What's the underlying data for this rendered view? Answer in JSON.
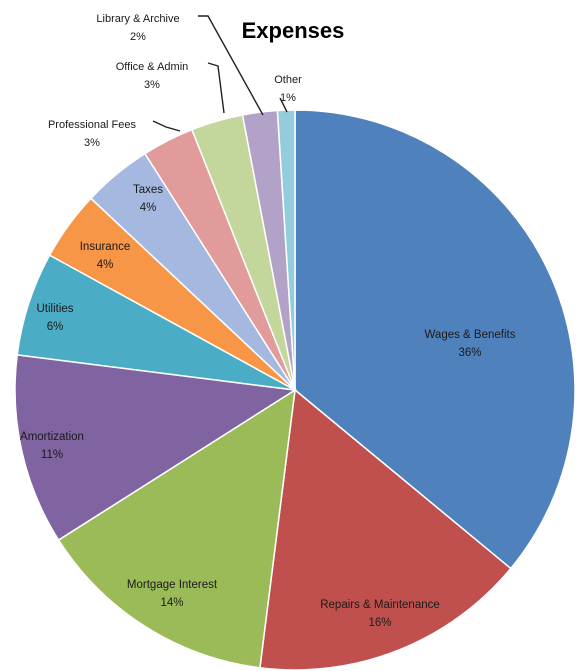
{
  "chart_data": {
    "type": "pie",
    "title": "Expenses",
    "slices": [
      {
        "label": "Wages & Benefits",
        "value": 36,
        "value_label": "36%",
        "color": "#4F81BD"
      },
      {
        "label": "Repairs & Maintenance",
        "value": 16,
        "value_label": "16%",
        "color": "#C0504D"
      },
      {
        "label": "Mortgage Interest",
        "value": 14,
        "value_label": "14%",
        "color": "#9BBB59"
      },
      {
        "label": "Amortization",
        "value": 11,
        "value_label": "11%",
        "color": "#8064A2"
      },
      {
        "label": "Utilities",
        "value": 6,
        "value_label": "6%",
        "color": "#4BACC6"
      },
      {
        "label": "Insurance",
        "value": 4,
        "value_label": "4%",
        "color": "#F79646"
      },
      {
        "label": "Taxes",
        "value": 4,
        "value_label": "4%",
        "color": "#A5B8E0"
      },
      {
        "label": "Professional Fees",
        "value": 3,
        "value_label": "3%",
        "color": "#E09B9A"
      },
      {
        "label": "Office & Admin",
        "value": 3,
        "value_label": "3%",
        "color": "#C3D69B"
      },
      {
        "label": "Library & Archive",
        "value": 2,
        "value_label": "2%",
        "color": "#B2A2C7"
      },
      {
        "label": "Other",
        "value": 1,
        "value_label": "1%",
        "color": "#93CDDD"
      }
    ],
    "legend": "none"
  }
}
